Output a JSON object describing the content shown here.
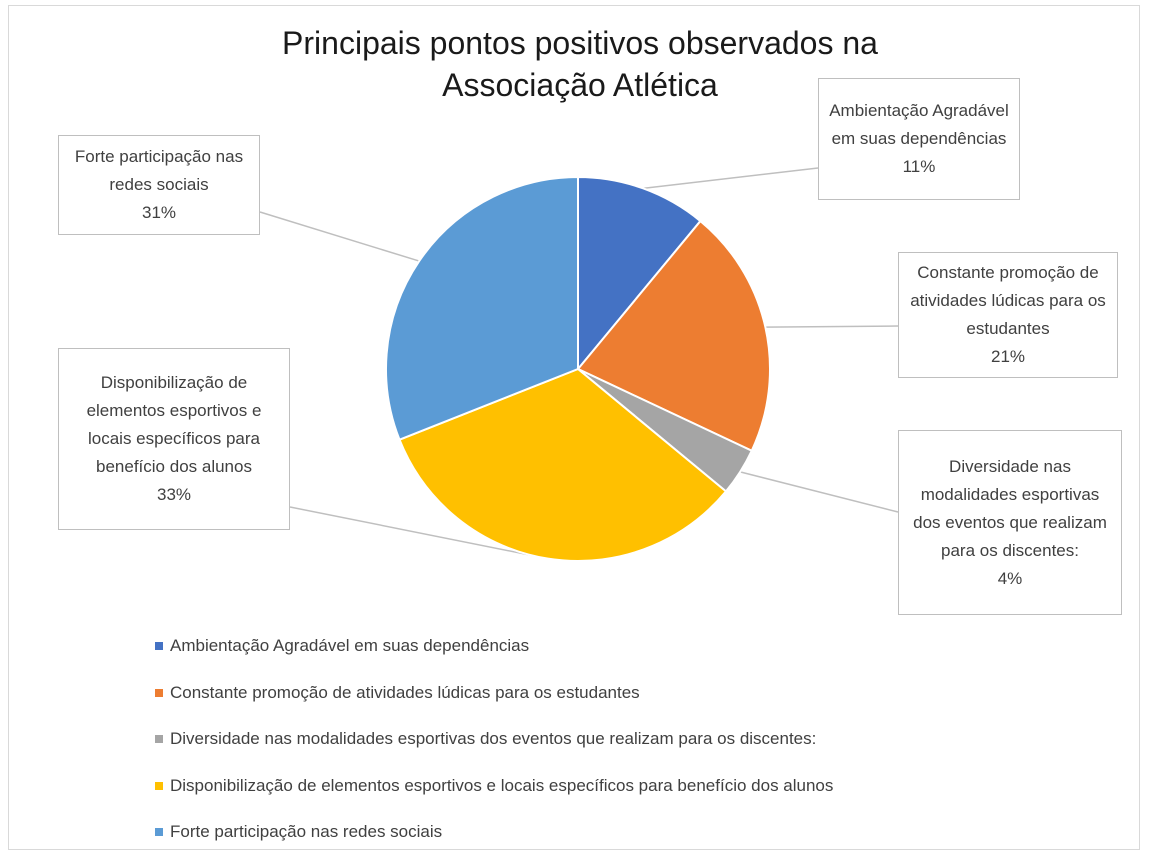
{
  "chart_data": {
    "type": "pie",
    "title": "Principais pontos positivos observados na Associação Atlética",
    "categories": [
      "Ambientação Agradável em suas dependências",
      "Constante promoção de atividades lúdicas para os estudantes",
      "Diversidade nas modalidades esportivas dos eventos que realizam para os discentes:",
      "Disponibilização de elementos esportivos e locais específicos para benefício dos alunos",
      "Forte participação nas redes sociais"
    ],
    "values": [
      11,
      21,
      4,
      33,
      31
    ],
    "value_labels": [
      "11%",
      "21%",
      "4%",
      "33%",
      "31%"
    ],
    "colors": [
      "#4472c4",
      "#ed7d31",
      "#a5a5a5",
      "#ffc000",
      "#5b9bd5"
    ],
    "legend": "bottom"
  }
}
